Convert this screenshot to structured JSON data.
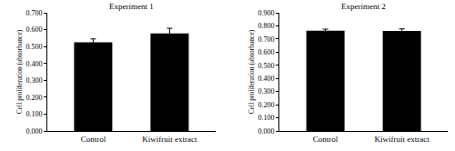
{
  "chart_data": [
    {
      "type": "bar",
      "title": "Experiment 1",
      "y_label": "Cell proliferation (absorbance)",
      "categories": [
        "Control",
        "Kiwifruit extract"
      ],
      "values": [
        0.525,
        0.578
      ],
      "errors": [
        0.02,
        0.03
      ],
      "color": "#000000",
      "ylim": [
        0,
        0.7
      ],
      "yticks": [
        {
          "value": 0,
          "label": "0.000"
        },
        {
          "value": 0.1,
          "label": "0.100"
        },
        {
          "value": 0.2,
          "label": "0.200"
        },
        {
          "value": 0.3,
          "label": "0.300"
        },
        {
          "value": 0.4,
          "label": "0.400"
        },
        {
          "value": 0.5,
          "label": "0.500"
        },
        {
          "value": 0.6,
          "label": "0.600"
        },
        {
          "value": 0.7,
          "label": "0.700"
        }
      ],
      "grid": false
    },
    {
      "type": "bar",
      "title": "Experiment 2",
      "y_label": "Cell proliferation (absorbance)",
      "categories": [
        "Control",
        "Kiwifruit extract"
      ],
      "values": [
        0.763,
        0.762
      ],
      "errors": [
        0.012,
        0.015
      ],
      "color": "#000000",
      "ylim": [
        0,
        0.9
      ],
      "yticks": [
        {
          "value": 0,
          "label": "0.000"
        },
        {
          "value": 0.1,
          "label": "0.100"
        },
        {
          "value": 0.2,
          "label": "0.200"
        },
        {
          "value": 0.3,
          "label": "0.300"
        },
        {
          "value": 0.4,
          "label": "0.400"
        },
        {
          "value": 0.5,
          "label": "0.500"
        },
        {
          "value": 0.6,
          "label": "0.600"
        },
        {
          "value": 0.7,
          "label": "0.700"
        },
        {
          "value": 0.8,
          "label": "0.800"
        },
        {
          "value": 0.9,
          "label": "0.900"
        }
      ],
      "grid": false
    }
  ]
}
